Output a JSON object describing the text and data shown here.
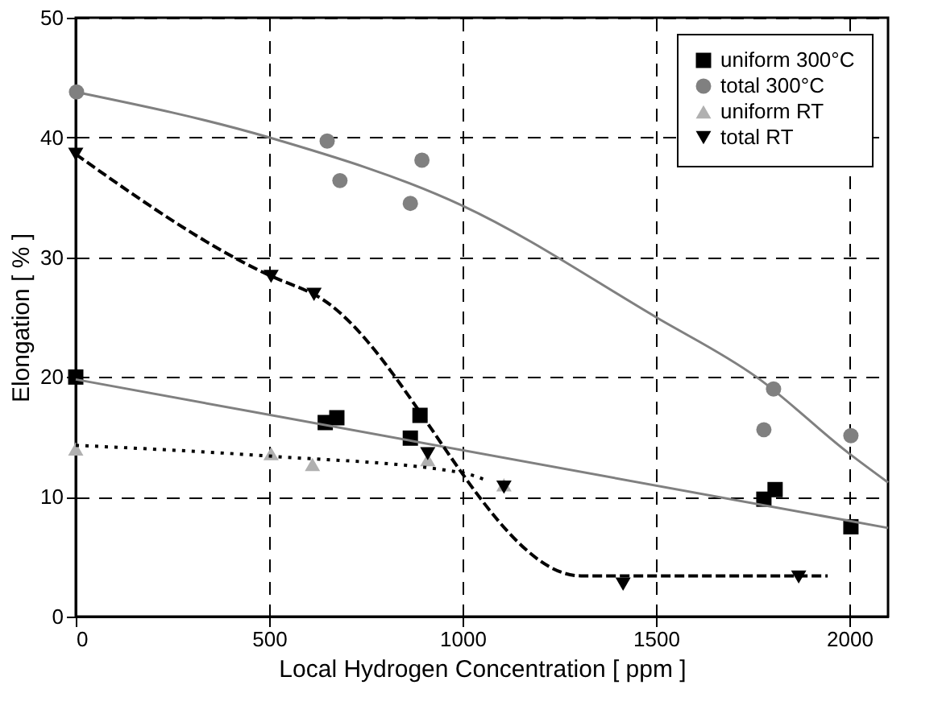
{
  "chart_data": {
    "type": "scatter",
    "xlabel": "Local Hydrogen Concentration [ ppm ]",
    "ylabel": "Elongation [ % ]",
    "xlim": [
      0,
      2100
    ],
    "ylim": [
      0,
      50
    ],
    "xticks": [
      0,
      500,
      1000,
      1500,
      2000
    ],
    "yticks": [
      0,
      10,
      20,
      30,
      40,
      50
    ],
    "grid": true,
    "legend": "top right",
    "series": [
      {
        "name": "uniform 300°C",
        "marker": "square",
        "color": "#000000",
        "x": [
          0,
          645,
          675,
          865,
          890,
          1779,
          1808,
          2004
        ],
        "values": [
          20,
          16.2,
          16.6,
          14.9,
          16.8,
          9.8,
          10.6,
          7.5
        ]
      },
      {
        "name": "total   300°C",
        "marker": "circle",
        "color": "#808080",
        "x": [
          2,
          650,
          683,
          865,
          895,
          1779,
          1804,
          2004
        ],
        "values": [
          43.8,
          39.7,
          36.4,
          34.5,
          38.1,
          15.6,
          19.0,
          15.1
        ]
      },
      {
        "name": "uniform RT",
        "marker": "triangle",
        "color": "#b0b0b0",
        "x": [
          0,
          505,
          612,
          910,
          1107
        ],
        "values": [
          14.0,
          13.6,
          12.7,
          13.1,
          11.0
        ]
      },
      {
        "name": "total   RT",
        "marker": "triangle-down",
        "color": "#000000",
        "x": [
          0,
          505,
          616,
          910,
          1107,
          1415,
          1869
        ],
        "values": [
          38.6,
          28.4,
          26.9,
          13.6,
          10.8,
          2.7,
          3.3
        ]
      },
      {
        "type": "line",
        "line_style": "solid",
        "color": "#808080",
        "x": [
          0,
          500,
          1000,
          1500,
          1760,
          2000,
          2100
        ],
        "values": [
          43.8,
          40,
          34.3,
          25,
          20,
          13.6,
          11.2
        ]
      },
      {
        "type": "line",
        "line_style": "solid",
        "color": "#808080",
        "x": [
          0,
          2100
        ],
        "values": [
          19.8,
          7.4
        ]
      },
      {
        "type": "line",
        "line_style": "dotted",
        "color": "#000000",
        "x": [
          0,
          500,
          1000,
          1060
        ],
        "values": [
          14.3,
          13.4,
          12.0,
          11.4
        ]
      },
      {
        "type": "line",
        "line_style": "dashed",
        "color": "#000000",
        "x": [
          0,
          500,
          616,
          1306,
          1944
        ],
        "values": [
          38.6,
          28.5,
          26.9,
          3.4,
          3.4
        ]
      }
    ]
  }
}
